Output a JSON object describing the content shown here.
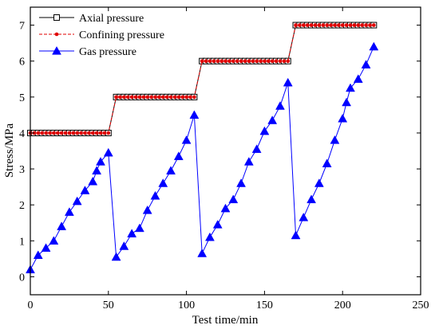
{
  "chart_data": {
    "type": "line",
    "xlabel": "Test time/min",
    "ylabel": "Stress/MPa",
    "xlim": [
      0,
      250
    ],
    "ylim": [
      -0.5,
      7.5
    ],
    "xticks": [
      0,
      50,
      100,
      150,
      200,
      250
    ],
    "yticks": [
      0,
      1,
      2,
      3,
      4,
      5,
      6,
      7
    ],
    "grid": false,
    "legend_position": "top-left",
    "series": [
      {
        "name": "Axial pressure",
        "marker": "square-open",
        "line_style": "solid",
        "color": "#000000",
        "x": [
          0,
          2.5,
          5,
          7.5,
          10,
          12.5,
          15,
          17.5,
          20,
          22.5,
          25,
          27.5,
          30,
          32.5,
          35,
          37.5,
          40,
          42.5,
          45,
          47.5,
          50,
          55,
          57.5,
          60,
          62.5,
          65,
          67.5,
          70,
          72.5,
          75,
          77.5,
          80,
          82.5,
          85,
          87.5,
          90,
          92.5,
          95,
          97.5,
          100,
          102.5,
          105,
          110,
          112.5,
          115,
          117.5,
          120,
          122.5,
          125,
          127.5,
          130,
          132.5,
          135,
          137.5,
          140,
          142.5,
          145,
          147.5,
          150,
          152.5,
          155,
          157.5,
          160,
          162.5,
          165,
          170,
          172.5,
          175,
          177.5,
          180,
          182.5,
          185,
          187.5,
          190,
          192.5,
          195,
          197.5,
          200,
          202.5,
          205,
          207.5,
          210,
          212.5,
          215,
          217.5,
          220
        ],
        "y": [
          4,
          4,
          4,
          4,
          4,
          4,
          4,
          4,
          4,
          4,
          4,
          4,
          4,
          4,
          4,
          4,
          4,
          4,
          4,
          4,
          4,
          5,
          5,
          5,
          5,
          5,
          5,
          5,
          5,
          5,
          5,
          5,
          5,
          5,
          5,
          5,
          5,
          5,
          5,
          5,
          5,
          5,
          6,
          6,
          6,
          6,
          6,
          6,
          6,
          6,
          6,
          6,
          6,
          6,
          6,
          6,
          6,
          6,
          6,
          6,
          6,
          6,
          6,
          6,
          6,
          7,
          7,
          7,
          7,
          7,
          7,
          7,
          7,
          7,
          7,
          7,
          7,
          7,
          7,
          7,
          7,
          7,
          7,
          7,
          7,
          7
        ]
      },
      {
        "name": "Confining pressure",
        "marker": "circle-filled",
        "line_style": "dashed",
        "color": "#e00000",
        "x": [
          0,
          2.5,
          5,
          7.5,
          10,
          12.5,
          15,
          17.5,
          20,
          22.5,
          25,
          27.5,
          30,
          32.5,
          35,
          37.5,
          40,
          42.5,
          45,
          47.5,
          50,
          55,
          57.5,
          60,
          62.5,
          65,
          67.5,
          70,
          72.5,
          75,
          77.5,
          80,
          82.5,
          85,
          87.5,
          90,
          92.5,
          95,
          97.5,
          100,
          102.5,
          105,
          110,
          112.5,
          115,
          117.5,
          120,
          122.5,
          125,
          127.5,
          130,
          132.5,
          135,
          137.5,
          140,
          142.5,
          145,
          147.5,
          150,
          152.5,
          155,
          157.5,
          160,
          162.5,
          165,
          170,
          172.5,
          175,
          177.5,
          180,
          182.5,
          185,
          187.5,
          190,
          192.5,
          195,
          197.5,
          200,
          202.5,
          205,
          207.5,
          210,
          212.5,
          215,
          217.5,
          220
        ],
        "y": [
          4,
          4,
          4,
          4,
          4,
          4,
          4,
          4,
          4,
          4,
          4,
          4,
          4,
          4,
          4,
          4,
          4,
          4,
          4,
          4,
          4,
          5,
          5,
          5,
          5,
          5,
          5,
          5,
          5,
          5,
          5,
          5,
          5,
          5,
          5,
          5,
          5,
          5,
          5,
          5,
          5,
          5,
          6,
          6,
          6,
          6,
          6,
          6,
          6,
          6,
          6,
          6,
          6,
          6,
          6,
          6,
          6,
          6,
          6,
          6,
          6,
          6,
          6,
          6,
          6,
          7,
          7,
          7,
          7,
          7,
          7,
          7,
          7,
          7,
          7,
          7,
          7,
          7,
          7,
          7,
          7,
          7,
          7,
          7,
          7,
          7
        ]
      },
      {
        "name": "Gas pressure",
        "marker": "triangle-filled",
        "line_style": "solid",
        "color": "#0000ff",
        "x": [
          0,
          5,
          10,
          15,
          20,
          25,
          30,
          35,
          40,
          42.5,
          45,
          50,
          55,
          60,
          65,
          70,
          75,
          80,
          85,
          90,
          95,
          100,
          105,
          110,
          115,
          120,
          125,
          130,
          135,
          140,
          145,
          150,
          155,
          160,
          165,
          170,
          175,
          180,
          185,
          190,
          195,
          200,
          202.5,
          205,
          210,
          215,
          220
        ],
        "y": [
          0.2,
          0.6,
          0.8,
          1.0,
          1.4,
          1.8,
          2.1,
          2.4,
          2.65,
          2.95,
          3.2,
          3.45,
          0.55,
          0.85,
          1.2,
          1.35,
          1.85,
          2.25,
          2.6,
          2.95,
          3.35,
          3.8,
          4.5,
          0.65,
          1.1,
          1.45,
          1.9,
          2.15,
          2.6,
          3.2,
          3.55,
          4.05,
          4.35,
          4.75,
          5.4,
          1.15,
          1.65,
          2.15,
          2.6,
          3.15,
          3.8,
          4.4,
          4.85,
          5.25,
          5.5,
          5.9,
          6.4
        ]
      }
    ]
  }
}
